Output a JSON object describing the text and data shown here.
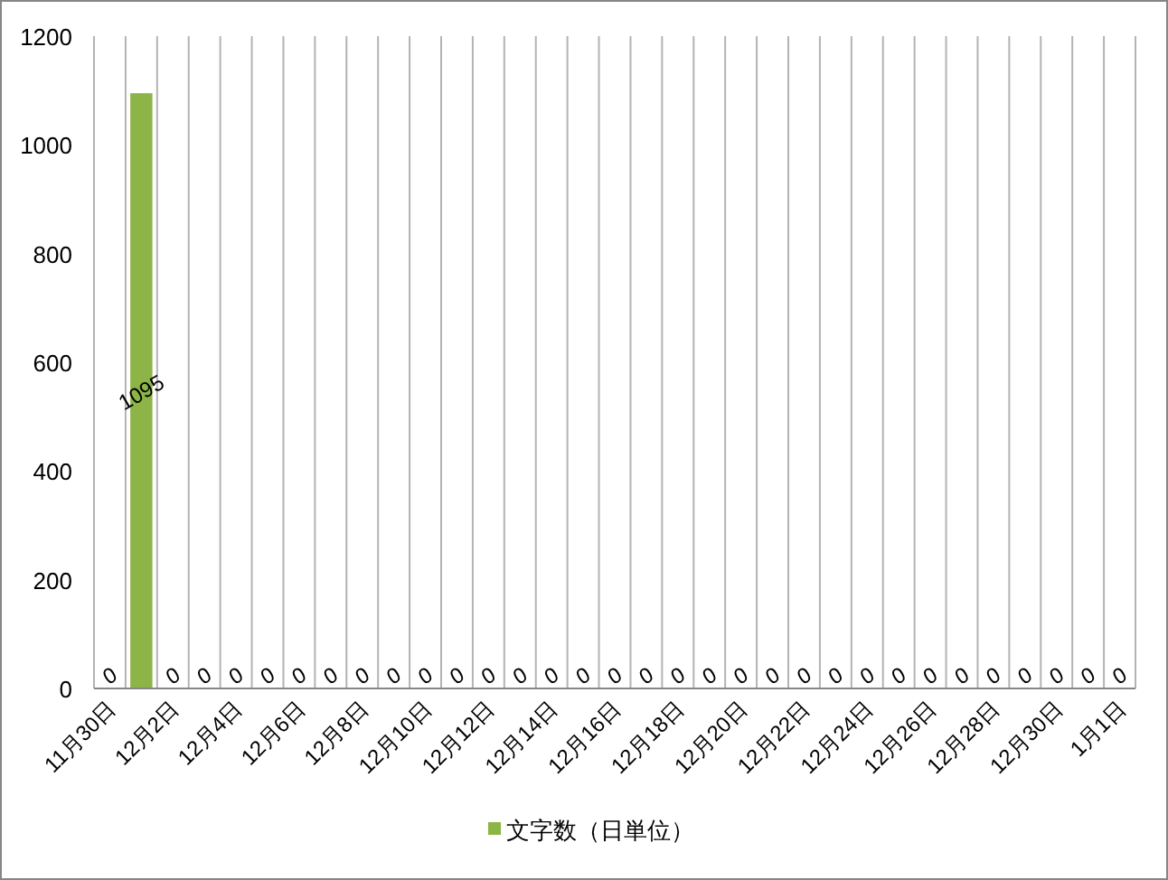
{
  "chart_data": {
    "type": "bar",
    "categories": [
      "11月30日",
      null,
      "12月2日",
      null,
      "12月4日",
      null,
      "12月6日",
      null,
      "12月8日",
      null,
      "12月10日",
      null,
      "12月12日",
      null,
      "12月14日",
      null,
      "12月16日",
      null,
      "12月18日",
      null,
      "12月20日",
      null,
      "12月22日",
      null,
      "12月24日",
      null,
      "12月26日",
      null,
      "12月28日",
      null,
      "12月30日",
      null,
      "1月1日"
    ],
    "series": [
      {
        "name": "文字数（日単位）",
        "color": "#8cb446",
        "values": [
          0,
          1095,
          0,
          0,
          0,
          0,
          0,
          0,
          0,
          0,
          0,
          0,
          0,
          0,
          0,
          0,
          0,
          0,
          0,
          0,
          0,
          0,
          0,
          0,
          0,
          0,
          0,
          0,
          0,
          0,
          0,
          0,
          0
        ]
      }
    ],
    "ylim": [
      0,
      1200
    ],
    "yticks": [
      0,
      200,
      400,
      600,
      800,
      1000,
      1200
    ],
    "grid": "x",
    "legend": "bottom",
    "data_labels": true
  }
}
